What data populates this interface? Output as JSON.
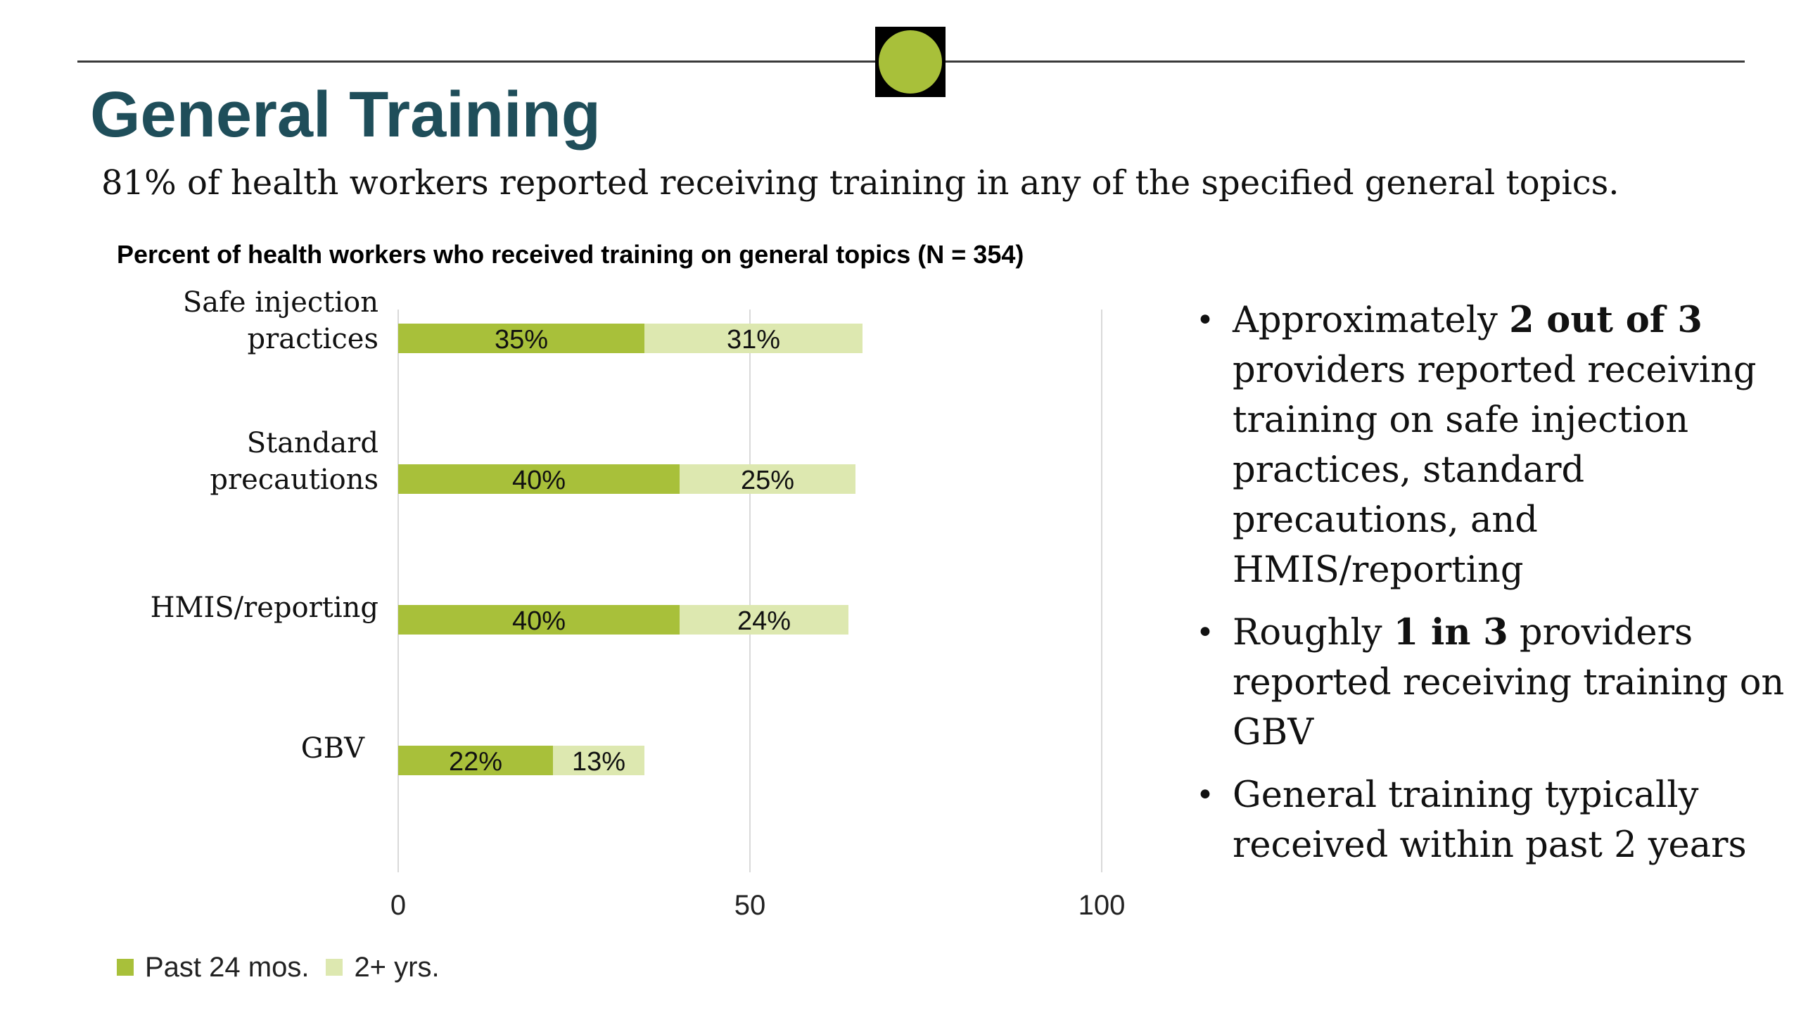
{
  "slide": {
    "title": "General Training",
    "subtitle": "81% of health workers reported receiving training in any of the specified general topics."
  },
  "colors": {
    "title": "#1f4e5a",
    "marker": "#a8c03a",
    "marker_box": "#000000",
    "past_24": "#a8c03a",
    "two_plus": "#dde8b0",
    "gridline": "#d9d9d9"
  },
  "chart_data": {
    "type": "bar",
    "orientation": "horizontal",
    "stacked": true,
    "title": "Percent of health workers who received training on general topics (N = 354)",
    "categories": [
      [
        "Safe injection",
        "practices"
      ],
      [
        "Standard",
        "precautions"
      ],
      [
        "HMIS/reporting"
      ],
      [
        "GBV"
      ]
    ],
    "series": [
      {
        "name": "Past 24 mos.",
        "color": "#a8c03a",
        "values": [
          35,
          40,
          40,
          22
        ],
        "labels": [
          "35%",
          "40%",
          "40%",
          "22%"
        ]
      },
      {
        "name": "2+ yrs.",
        "color": "#dde8b0",
        "values": [
          31,
          25,
          24,
          13
        ],
        "labels": [
          "31%",
          "25%",
          "24%",
          "13%"
        ]
      }
    ],
    "xlim": [
      0,
      100
    ],
    "xticks": [
      0,
      50,
      100
    ],
    "xtick_labels": [
      "0",
      "50",
      "100"
    ],
    "grid": true,
    "legend_position": "bottom-left"
  },
  "legend": [
    {
      "label": "Past 24 mos.",
      "color": "#a8c03a"
    },
    {
      "label": "2+ yrs.",
      "color": "#dde8b0"
    }
  ],
  "bullets": [
    {
      "before": "Approximately ",
      "bold": "2 out of 3",
      "after": " providers reported receiving training on safe injection practices, standard precautions, and HMIS/reporting"
    },
    {
      "before": "Roughly ",
      "bold": "1 in 3",
      "after": " providers reported receiving training on GBV"
    },
    {
      "before": "General training typically received within past 2 years",
      "bold": "",
      "after": ""
    }
  ]
}
